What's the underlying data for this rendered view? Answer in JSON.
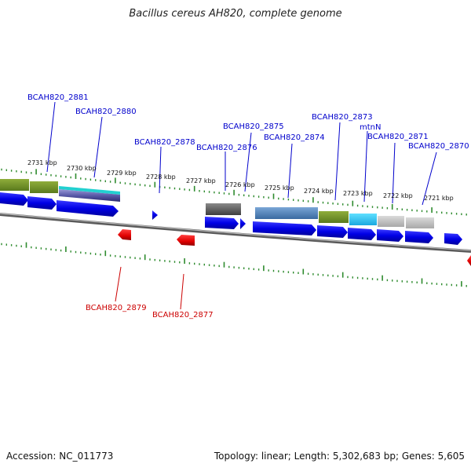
{
  "title": "Bacillus cereus AH820, complete genome",
  "footer": {
    "accession": "Accession: NC_011773",
    "topology": "Topology: linear; Length: 5,302,683 bp; Genes: 5,605"
  },
  "colors": {
    "forward_gene": "#0000ee",
    "reverse_gene": "#ee0000",
    "forward_label": "#0000cc",
    "reverse_label": "#cc0000",
    "tick": "#2e8b2e",
    "backbone": "#808080"
  },
  "scale_labels": [
    "2731 kbp",
    "2730 kbp",
    "2729 kbp",
    "2728 kbp",
    "2727 kbp",
    "2726 kbp",
    "2725 kbp",
    "2724 kbp",
    "2723 kbp",
    "2722 kbp",
    "2721 kbp"
  ],
  "forward_labels": [
    "BCAH820_2881",
    "BCAH820_2880",
    "BCAH820_2878",
    "BCAH820_2876",
    "BCAH820_2875",
    "BCAH820_2874",
    "BCAH820_2873",
    "mtnN",
    "BCAH820_2871",
    "BCAH820_2870"
  ],
  "reverse_labels": [
    "BCAH820_2879",
    "BCAH820_2877"
  ]
}
